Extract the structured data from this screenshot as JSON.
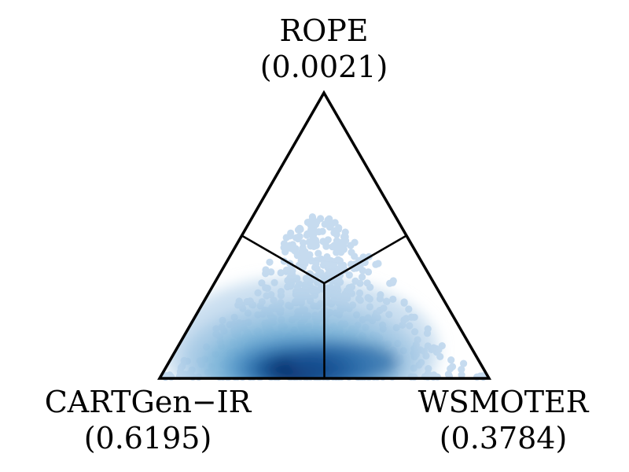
{
  "chart_data": {
    "type": "ternary-density-scatter",
    "vertices": [
      {
        "corner": "top",
        "name": "ROPE",
        "share": "(0.0021)"
      },
      {
        "corner": "bottom-left",
        "name": "CARTGen−IR",
        "share": "(0.6195)"
      },
      {
        "corner": "bottom-right",
        "name": "WSMOTER",
        "share": "(0.3784)"
      }
    ],
    "axis_range": [
      0,
      1
    ],
    "grid": false,
    "legend": "none",
    "region_boundaries": "lines from the centroid to the midpoints of the three sides",
    "density": {
      "description": "points concentrated near the bottom edge, densest close to the centroid split, thinning toward the top vertex",
      "peak": {
        "top": 0.04,
        "left": 0.55,
        "right": 0.41
      },
      "max_top_share_observed": 0.57
    },
    "colors": {
      "point_light": "#c6dbef",
      "point_mid": "#6baed6",
      "point_dense": "#08306b",
      "outline": "#000000"
    }
  }
}
